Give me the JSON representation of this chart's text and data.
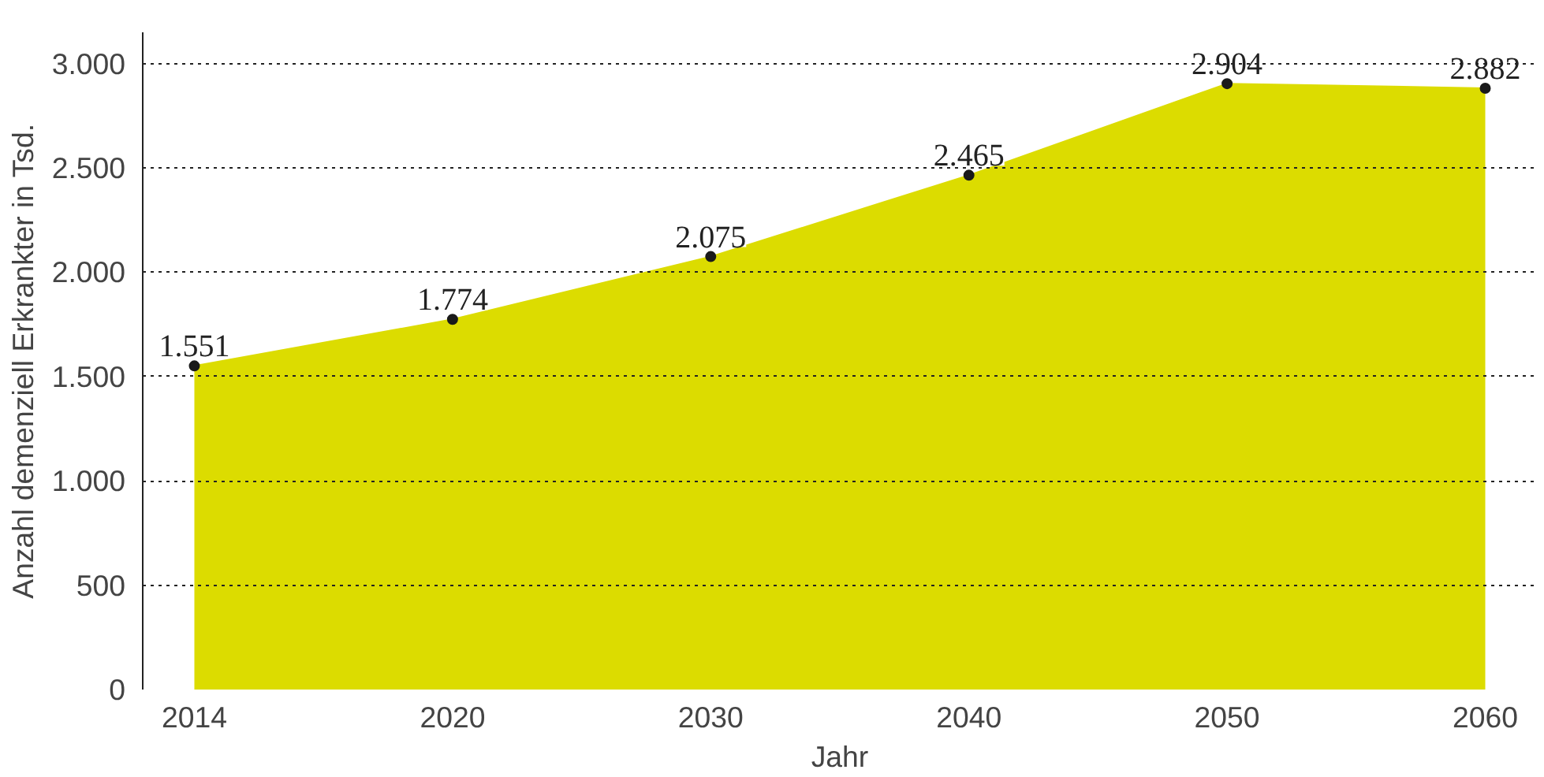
{
  "chart_data": {
    "type": "area",
    "xlabel": "Jahr",
    "ylabel": "Anzahl demenziell Erkrankter in Tsd.",
    "categories": [
      "2014",
      "2020",
      "2030",
      "2040",
      "2050",
      "2060"
    ],
    "series": [
      {
        "color": "#dcdc00",
        "values": [
          1551,
          1774,
          2075,
          2465,
          2904,
          2882
        ]
      }
    ],
    "value_labels": [
      "1.551",
      "1.774",
      "2.075",
      "2.465",
      "2.904",
      "2.882"
    ],
    "ylim": [
      0,
      3150
    ],
    "yticks": [
      {
        "value": 0,
        "label": "0"
      },
      {
        "value": 500,
        "label": "500"
      },
      {
        "value": 1000,
        "label": "1.000"
      },
      {
        "value": 1500,
        "label": "1.500"
      },
      {
        "value": 2000,
        "label": "2.000"
      },
      {
        "value": 2500,
        "label": "2.500"
      },
      {
        "value": 3000,
        "label": "3.000"
      }
    ],
    "grid": "y",
    "marker": "circle"
  }
}
